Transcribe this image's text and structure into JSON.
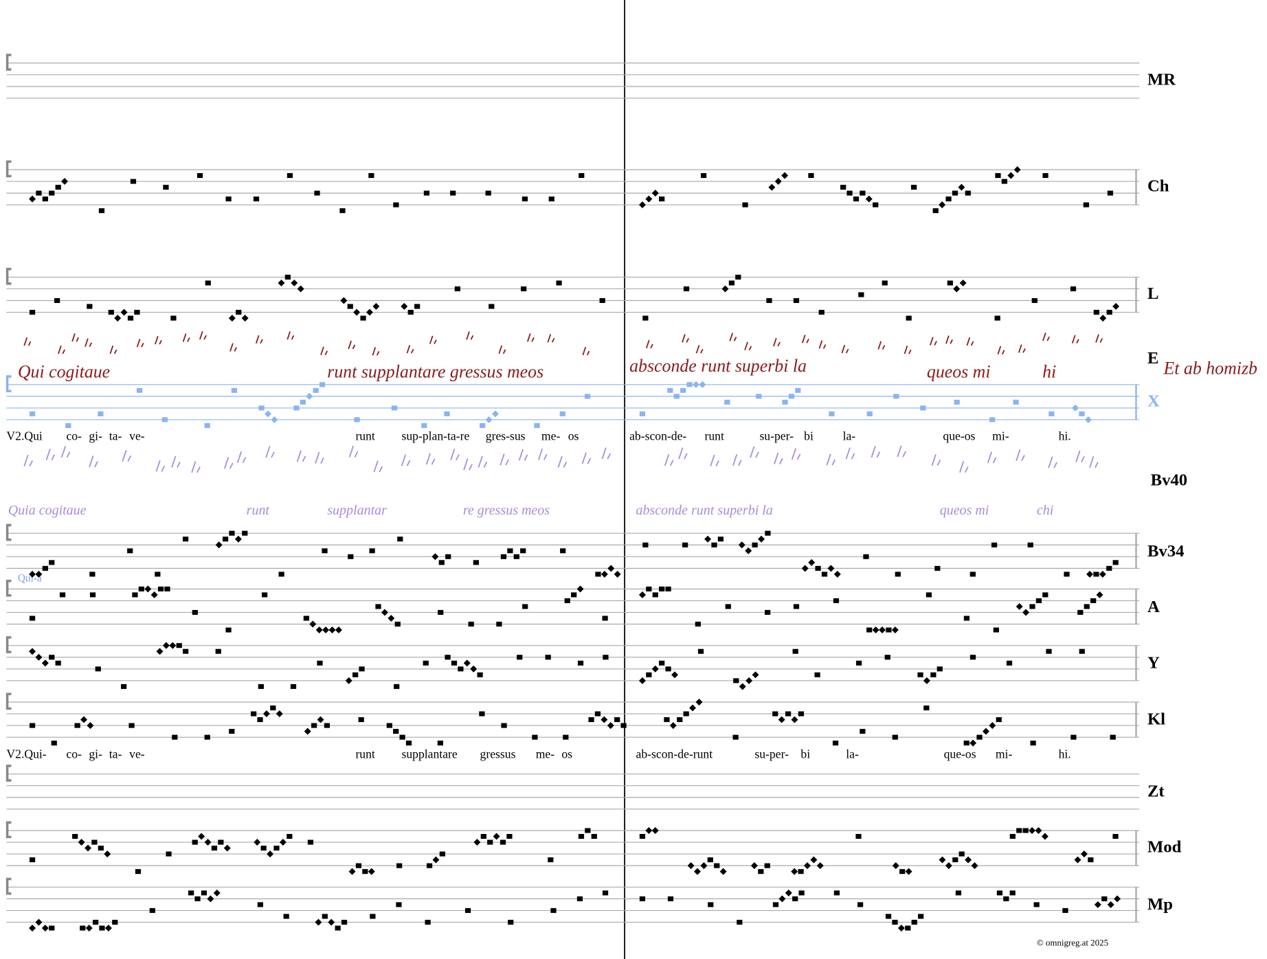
{
  "labels": [
    "MR",
    "Ch",
    "L",
    "E",
    "X",
    "Bv40",
    "Bv34",
    "A",
    "Y",
    "Kl",
    "Zt",
    "Mod",
    "Mp"
  ],
  "lyrics": [
    [
      "V2.Qui",
      "co-",
      "gi-",
      "ta-",
      "ve-",
      "runt",
      "sup-plan-ta-re",
      "gres-sus",
      "me-",
      "os",
      "ab-scon-de-",
      "runt",
      "su-per-",
      "bi",
      "la-",
      "que-os",
      "mi-",
      "hi."
    ],
    [
      "V2.Qui-",
      "co-",
      "gi-",
      "ta-",
      "ve-",
      "runt",
      "supplantare",
      "gressus",
      "me-",
      "os",
      "ab-scon-de-runt",
      "su-per-",
      "bi",
      "la-",
      "que-os",
      "mi-",
      "hi."
    ]
  ],
  "manuscript_e": [
    "Qui cogitaue",
    "runt supplantare gressus meos",
    "absconde runt superbi la",
    "queos mi",
    "hi",
    "Et ab homizb"
  ],
  "manuscript_bv40": [
    "Quia cogitaue",
    "runt",
    "supplantar",
    "re gressus meos",
    "absconde runt superbi la",
    "queos mi",
    "chi"
  ],
  "annotation": "Qui-a",
  "footer": "© omnigreg.at   2025"
}
